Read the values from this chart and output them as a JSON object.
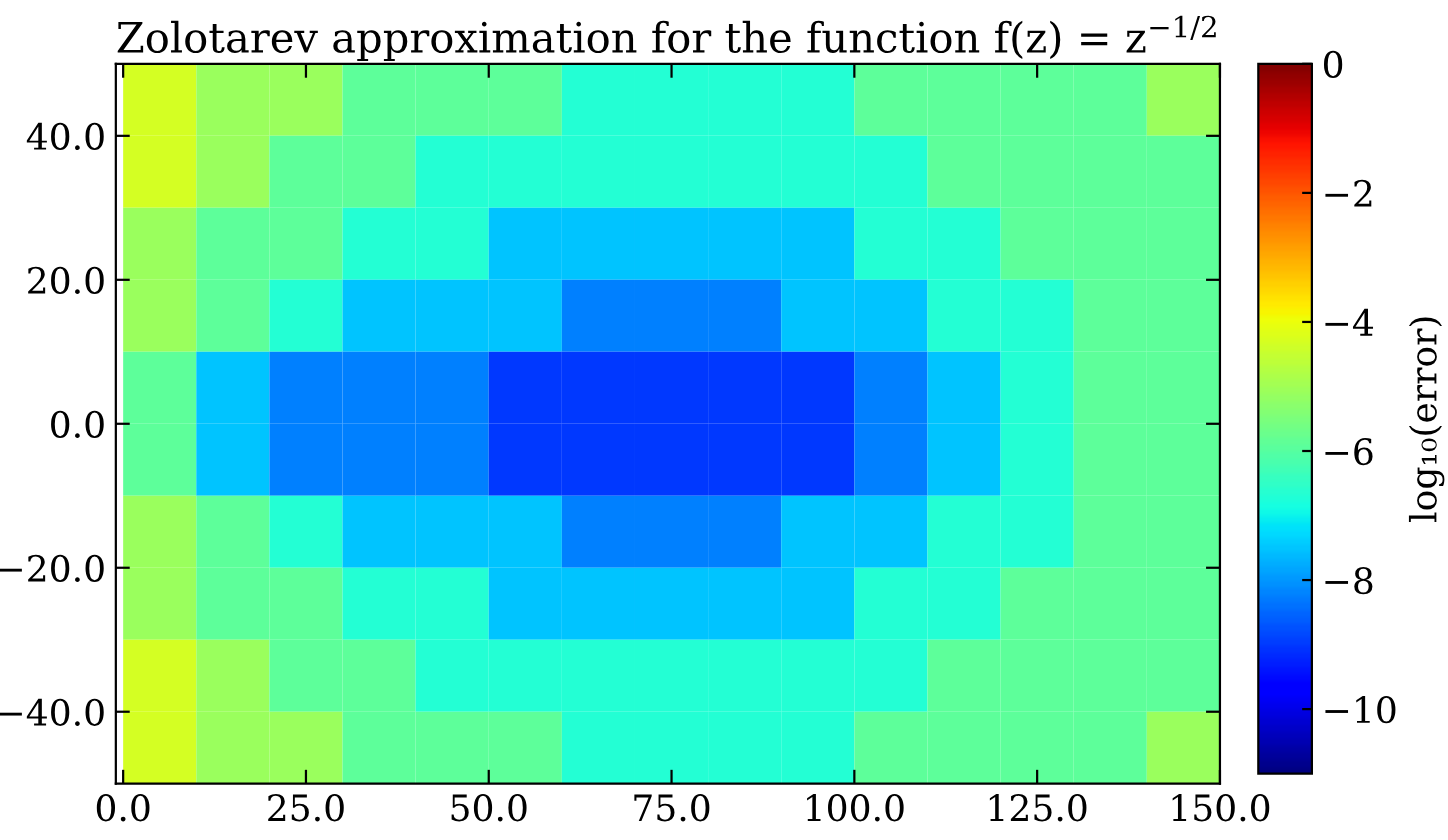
{
  "chart_data": {
    "type": "heatmap",
    "title": "Zolotarev approximation for the function f(z) = z$^{−1/2}$",
    "clabel": "log₁₀(error)",
    "x": [
      5,
      15,
      25,
      35,
      45,
      55,
      65,
      75,
      85,
      95,
      105,
      115,
      125,
      135,
      145
    ],
    "y": [
      45,
      35,
      25,
      15,
      5,
      -5,
      -15,
      -25,
      -35,
      -45
    ],
    "cells": [
      [
        -4.3,
        -5.1,
        -5.1,
        -5.9,
        -5.9,
        -5.9,
        -6.7,
        -6.7,
        -6.7,
        -6.7,
        -5.9,
        -5.9,
        -5.9,
        -5.9,
        -5.1
      ],
      [
        -4.3,
        -5.1,
        -5.9,
        -5.9,
        -6.7,
        -6.7,
        -6.7,
        -6.7,
        -6.7,
        -6.7,
        -6.7,
        -5.9,
        -5.9,
        -5.9,
        -5.9
      ],
      [
        -5.1,
        -5.9,
        -5.9,
        -6.7,
        -6.7,
        -7.5,
        -7.5,
        -7.5,
        -7.5,
        -7.5,
        -6.7,
        -6.7,
        -5.9,
        -5.9,
        -5.9
      ],
      [
        -5.1,
        -5.9,
        -6.7,
        -7.5,
        -7.5,
        -7.5,
        -8.25,
        -8.25,
        -8.25,
        -7.5,
        -7.5,
        -6.7,
        -6.7,
        -5.9,
        -5.9
      ],
      [
        -5.9,
        -7.5,
        -8.25,
        -8.25,
        -8.25,
        -9.0,
        -9.0,
        -9.0,
        -9.0,
        -9.0,
        -8.25,
        -7.5,
        -6.7,
        -5.9,
        -5.9
      ],
      [
        -5.9,
        -7.5,
        -8.25,
        -8.25,
        -8.25,
        -9.0,
        -9.0,
        -9.0,
        -9.0,
        -9.0,
        -8.25,
        -7.5,
        -6.7,
        -5.9,
        -5.9
      ],
      [
        -5.1,
        -5.9,
        -6.7,
        -7.5,
        -7.5,
        -7.5,
        -8.25,
        -8.25,
        -8.25,
        -7.5,
        -7.5,
        -6.7,
        -6.7,
        -5.9,
        -5.9
      ],
      [
        -5.1,
        -5.9,
        -5.9,
        -6.7,
        -6.7,
        -7.5,
        -7.5,
        -7.5,
        -7.5,
        -7.5,
        -6.7,
        -6.7,
        -5.9,
        -5.9,
        -5.9
      ],
      [
        -4.3,
        -5.1,
        -5.9,
        -5.9,
        -6.7,
        -6.7,
        -6.7,
        -6.7,
        -6.7,
        -6.7,
        -6.7,
        -5.9,
        -5.9,
        -5.9,
        -5.9
      ],
      [
        -4.3,
        -5.1,
        -5.1,
        -5.9,
        -5.9,
        -5.9,
        -6.7,
        -6.7,
        -6.7,
        -6.7,
        -5.9,
        -5.9,
        -5.9,
        -5.9,
        -5.1
      ]
    ],
    "clim": [
      -11,
      0
    ],
    "cticks": [
      0,
      {
        "value": -2,
        "label": "−2"
      },
      {
        "value": -4,
        "label": "−4"
      },
      {
        "value": -6,
        "label": "−6"
      },
      {
        "value": -8,
        "label": "−8"
      },
      {
        "value": -10,
        "label": "−10"
      }
    ],
    "xlim": [
      -1,
      150
    ],
    "ylim": [
      -50,
      50
    ],
    "xticks": [
      {
        "value": 0,
        "label": "0.0"
      },
      {
        "value": 25,
        "label": "25.0"
      },
      {
        "value": 50,
        "label": "50.0"
      },
      {
        "value": 75,
        "label": "75.0"
      },
      {
        "value": 100,
        "label": "100.0"
      },
      {
        "value": 125,
        "label": "125.0"
      },
      {
        "value": 150,
        "label": "150.0"
      }
    ],
    "yticks": [
      {
        "value": -40,
        "label": "−40.0"
      },
      {
        "value": -20,
        "label": "−20.0"
      },
      {
        "value": 0,
        "label": "0.0"
      },
      {
        "value": 20,
        "label": "20.0"
      },
      {
        "value": 40,
        "label": "40.0"
      }
    ]
  }
}
